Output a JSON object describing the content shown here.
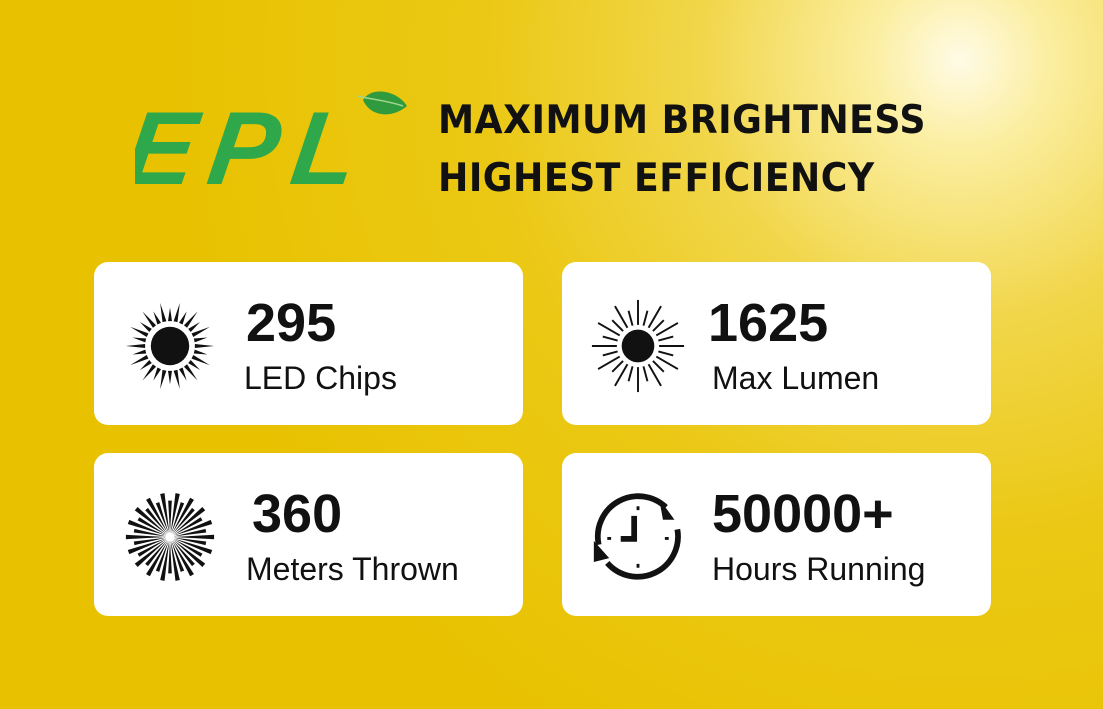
{
  "logo": {
    "text": "EPL",
    "color": "#2ea84a"
  },
  "headline": {
    "line1": "MAXIMUM BRIGHTNESS",
    "line2": "HIGHEST EFFICIENCY"
  },
  "stats": [
    {
      "value": "295",
      "label": "LED Chips",
      "icon": "sun-icon"
    },
    {
      "value": "1625",
      "label": "Max Lumen",
      "icon": "starburst-icon"
    },
    {
      "value": "360",
      "label": "Meters Thrown",
      "icon": "radial-burst-icon"
    },
    {
      "value": "50000+",
      "label": "Hours Running",
      "icon": "clock-cycle-icon"
    }
  ]
}
